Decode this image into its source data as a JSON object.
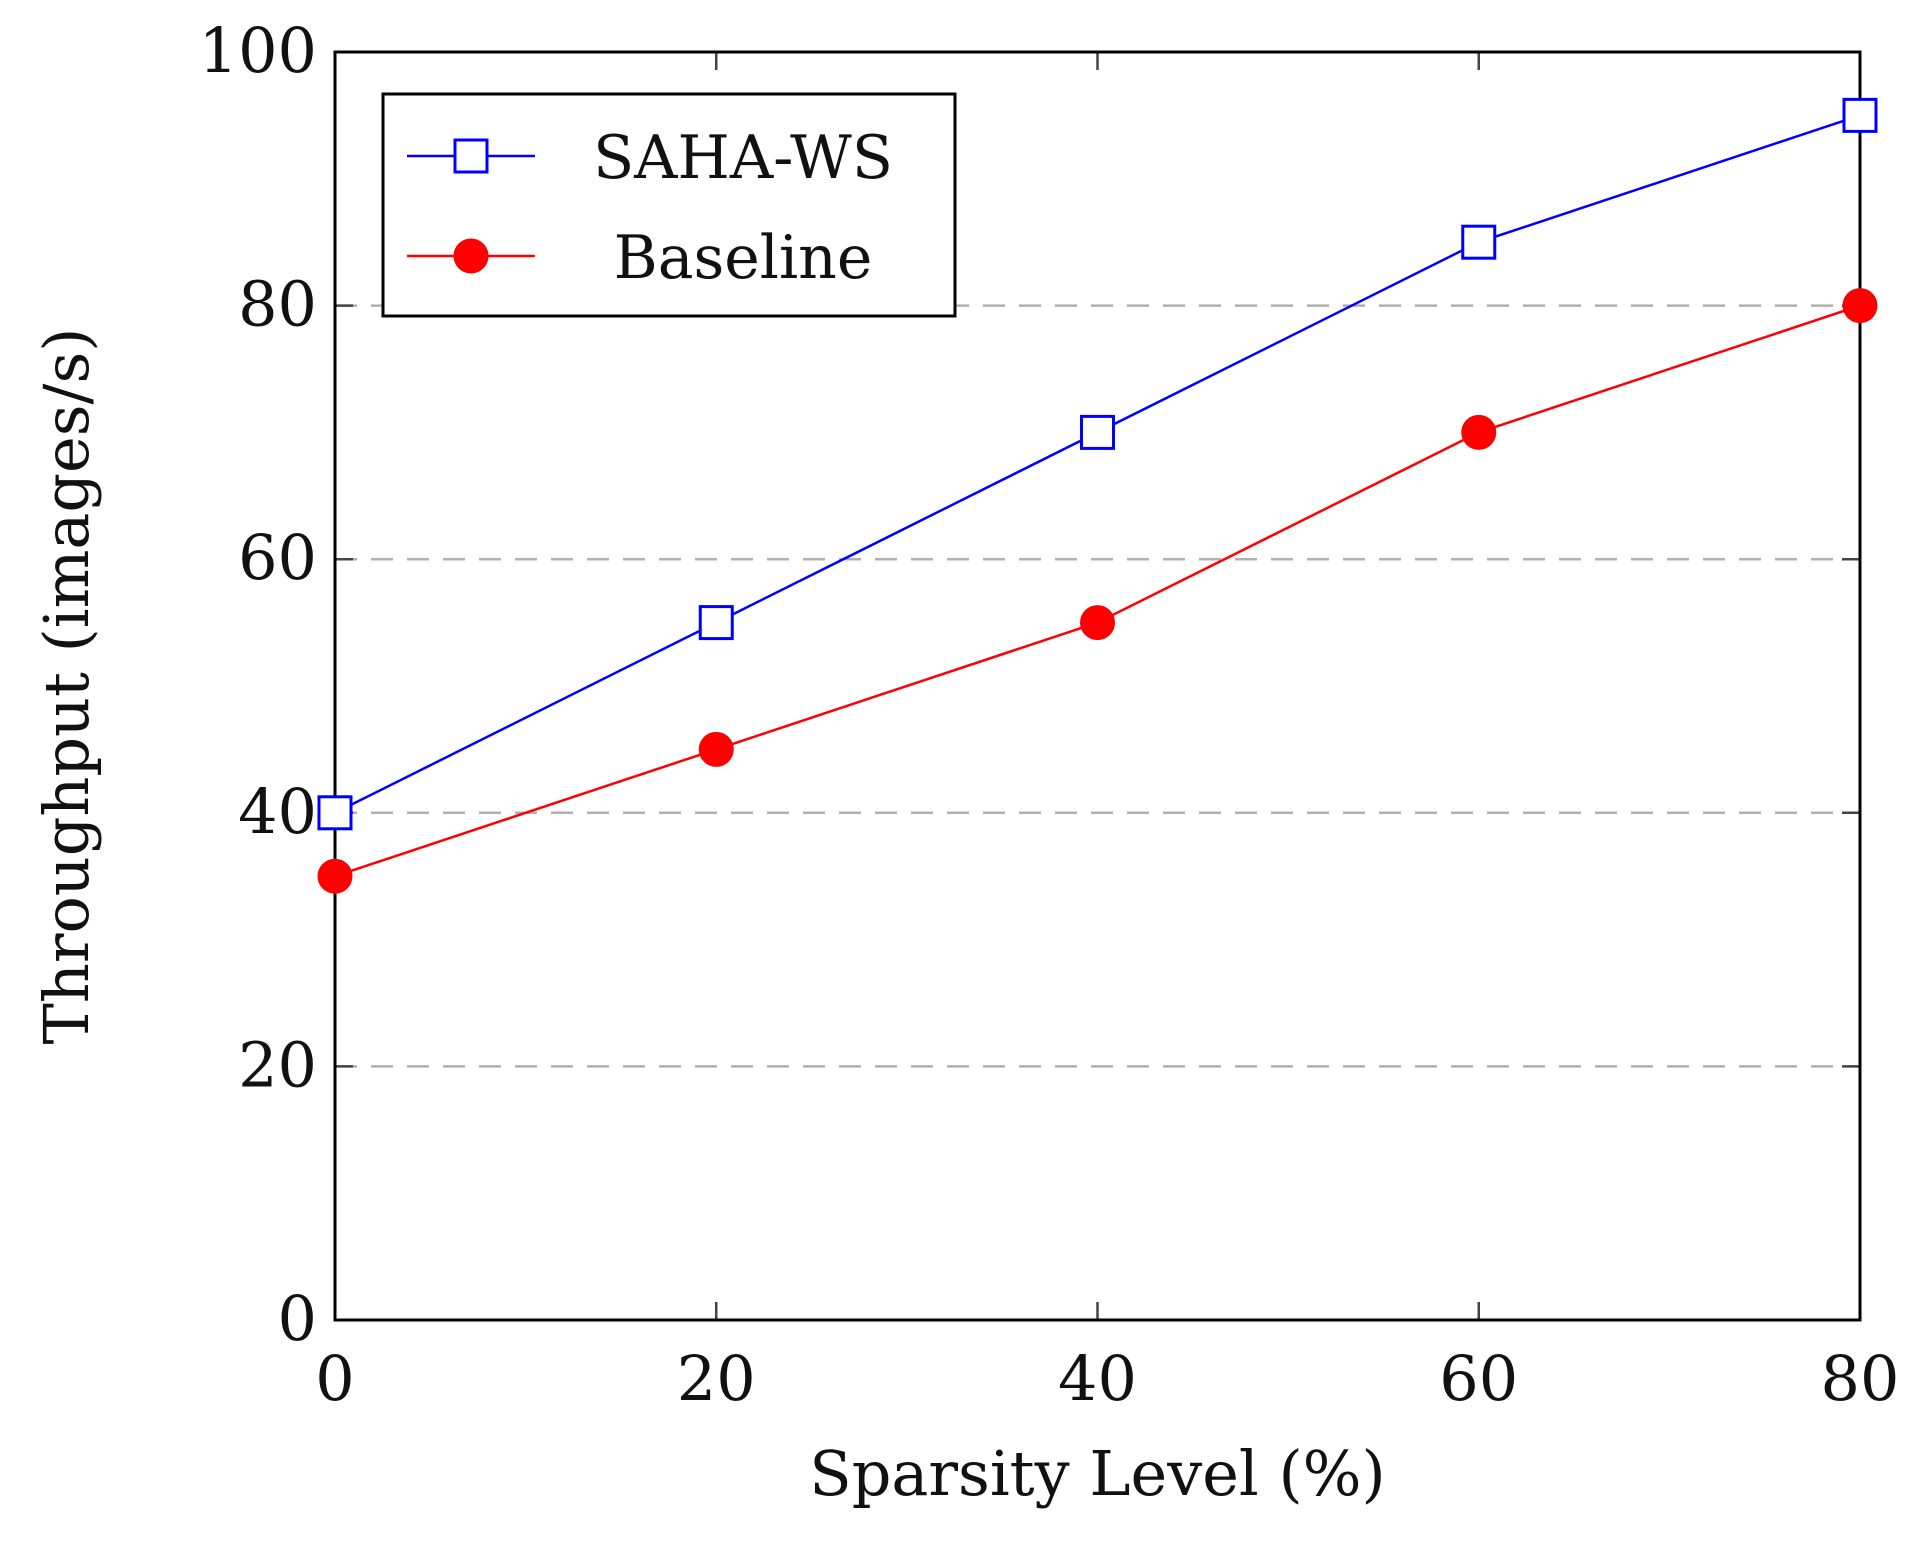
{
  "chart_data": {
    "type": "line",
    "title": "",
    "xlabel": "Sparsity Level (%)",
    "ylabel": "Throughput (images/s)",
    "x": [
      0,
      20,
      40,
      60,
      80
    ],
    "xlim": [
      0,
      80
    ],
    "ylim": [
      0,
      100
    ],
    "x_ticks": [
      "0",
      "20",
      "40",
      "60",
      "80"
    ],
    "y_ticks": [
      "0",
      "20",
      "40",
      "60",
      "80",
      "100"
    ],
    "grid": "dashed horizontal",
    "legend_position": "top-left",
    "series": [
      {
        "name": "SAHA-WS",
        "values": [
          40,
          55,
          70,
          85,
          95
        ],
        "color": "#0000ff",
        "marker": "open-square"
      },
      {
        "name": "Baseline",
        "values": [
          35,
          45,
          55,
          70,
          80
        ],
        "color": "#ff0000",
        "marker": "filled-circle"
      }
    ]
  }
}
